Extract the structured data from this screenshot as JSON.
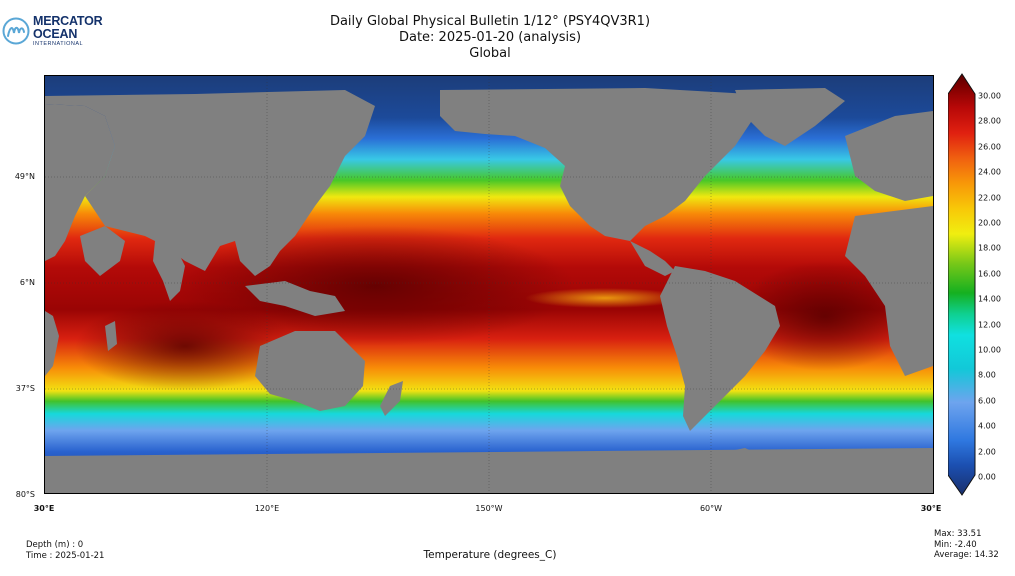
{
  "logo": {
    "line1": "MERCATOR",
    "line2": "OCEAN",
    "line3": "INTERNATIONAL",
    "color": "#14326b"
  },
  "title": {
    "line1": "Daily Global Physical Bulletin 1/12° (PSY4QV3R1)",
    "line2": "Date: 2025-01-20 (analysis)",
    "line3": "Global"
  },
  "map": {
    "land_color": "#808080",
    "latitude_labels": [
      "49°N",
      "6°N",
      "37°S",
      "80°S"
    ],
    "longitude_labels": [
      "30°E",
      "120°E",
      "150°W",
      "60°W",
      "30°E"
    ]
  },
  "colorbar": {
    "min": 0,
    "max": 30,
    "ticks": [
      "30.00",
      "28.00",
      "26.00",
      "24.00",
      "22.00",
      "20.00",
      "18.00",
      "16.00",
      "14.00",
      "12.00",
      "10.00",
      "8.00",
      "6.00",
      "4.00",
      "2.00",
      "0.00"
    ],
    "colors": [
      "#1a2f6b",
      "#1b4fb0",
      "#2f78e0",
      "#6ea4ee",
      "#12c8d8",
      "#10e0e0",
      "#0fd090",
      "#15b020",
      "#78c818",
      "#f0ee10",
      "#f8c808",
      "#f89808",
      "#f06010",
      "#e02010",
      "#b80808",
      "#800000",
      "#5a0000"
    ]
  },
  "footer": {
    "depth": "Depth (m) : 0",
    "time": "Time : 2025-01-21",
    "variable": "Temperature (degrees_C)",
    "max": "Max: 33.51",
    "min": "Min: -2.40",
    "average": "Average: 14.32"
  }
}
